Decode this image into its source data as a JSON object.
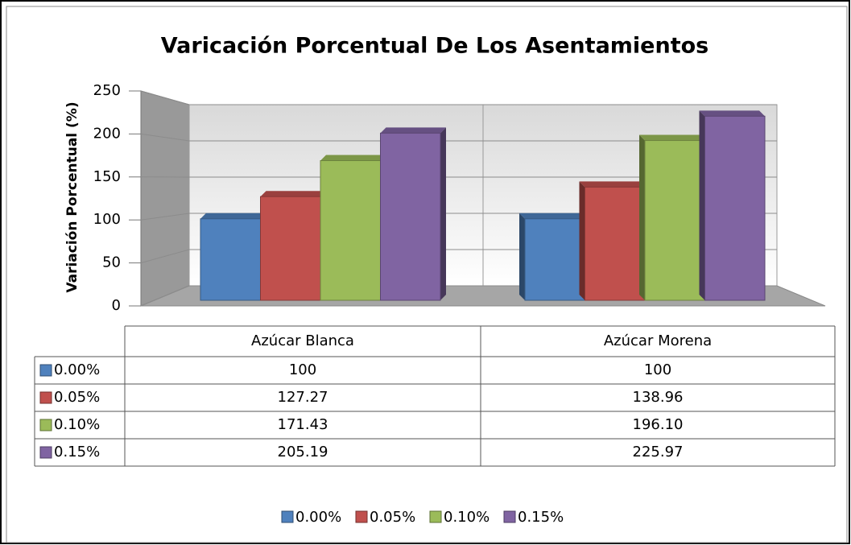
{
  "chart_data": {
    "type": "bar3d",
    "title": "Varicación Porcentual De Los Asentamientos",
    "y_label": "Variación Porcentual (%)",
    "categories": [
      "Azúcar Blanca",
      "Azúcar Morena"
    ],
    "series": [
      {
        "name": "0.00%",
        "color": "#4f81bd",
        "values": [
          100,
          100
        ],
        "value_labels": [
          "100",
          "100"
        ]
      },
      {
        "name": "0.05%",
        "color": "#c0504d",
        "values": [
          127.27,
          138.96
        ],
        "value_labels": [
          "127.27",
          "138.96"
        ]
      },
      {
        "name": "0.10%",
        "color": "#9bbb59",
        "values": [
          171.43,
          196.1
        ],
        "value_labels": [
          "171.43",
          "196.10"
        ]
      },
      {
        "name": "0.15%",
        "color": "#8064a2",
        "values": [
          205.19,
          225.97
        ],
        "value_labels": [
          "205.19",
          "225.97"
        ]
      }
    ],
    "ylim": [
      0,
      250
    ],
    "yticks": [
      0,
      50,
      100,
      150,
      200,
      250
    ],
    "grid": true,
    "legend": "bottom",
    "data_table": true
  }
}
